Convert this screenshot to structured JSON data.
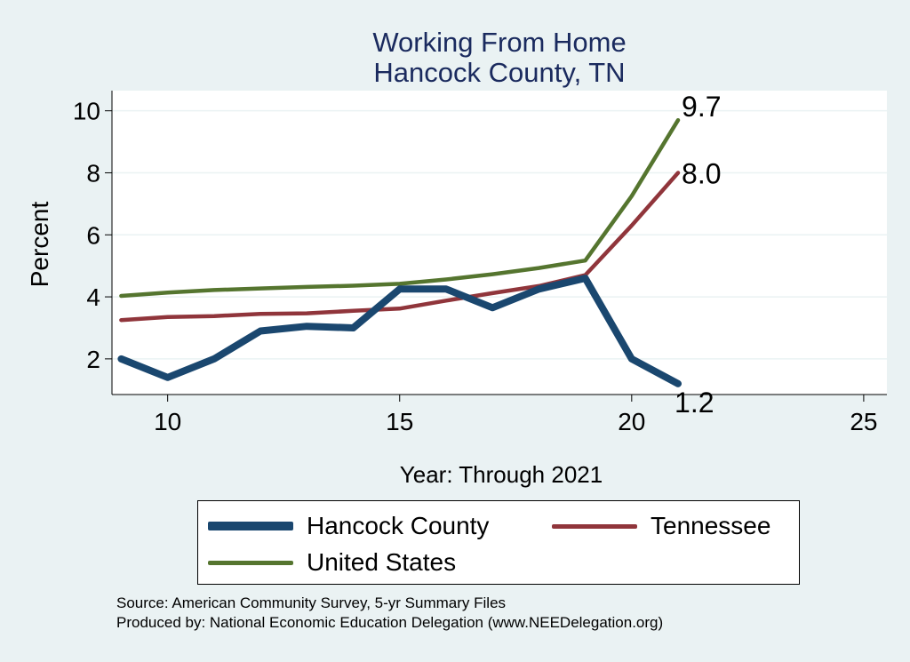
{
  "chart_data": {
    "type": "line",
    "title": [
      "Working From Home",
      "Hancock County, TN"
    ],
    "xlabel": "Year: Through 2021",
    "ylabel": "Percent",
    "xlim": [
      8.8,
      25.5
    ],
    "ylim": [
      0.85,
      10.65
    ],
    "xticks": [
      10,
      15,
      20,
      25
    ],
    "yticks": [
      2,
      4,
      6,
      8,
      10
    ],
    "grid": true,
    "legend_position": "bottom",
    "series": [
      {
        "name": "Hancock County",
        "color": "#1a476f",
        "x": [
          9,
          10,
          11,
          12,
          13,
          14,
          15,
          16,
          17,
          18,
          19,
          20,
          21
        ],
        "y": [
          2.0,
          1.4,
          2.0,
          2.9,
          3.05,
          3.0,
          4.25,
          4.25,
          3.65,
          4.25,
          4.6,
          2.0,
          1.2
        ],
        "end_label": "1.2"
      },
      {
        "name": "Tennessee",
        "color": "#90353b",
        "x": [
          9,
          10,
          11,
          12,
          13,
          14,
          15,
          16,
          17,
          18,
          19,
          20,
          21
        ],
        "y": [
          3.25,
          3.35,
          3.38,
          3.45,
          3.47,
          3.55,
          3.62,
          3.88,
          4.12,
          4.35,
          4.7,
          6.3,
          8.0
        ],
        "end_label": "8.0"
      },
      {
        "name": "United States",
        "color": "#55752f",
        "x": [
          9,
          10,
          11,
          12,
          13,
          14,
          15,
          16,
          17,
          18,
          19,
          20,
          21
        ],
        "y": [
          4.03,
          4.14,
          4.22,
          4.27,
          4.32,
          4.36,
          4.42,
          4.56,
          4.73,
          4.93,
          5.17,
          7.25,
          9.7
        ],
        "end_label": "9.7"
      }
    ]
  },
  "legend": {
    "items": [
      {
        "label": "Hancock County",
        "color": "#1a476f"
      },
      {
        "label": "Tennessee",
        "color": "#90353b"
      },
      {
        "label": "United States",
        "color": "#55752f"
      }
    ]
  },
  "source": {
    "line1": "Source: American Community Survey, 5-yr Summary Files",
    "line2": "Produced by: National Economic Education Delegation (www.NEEDelegation.org)"
  }
}
